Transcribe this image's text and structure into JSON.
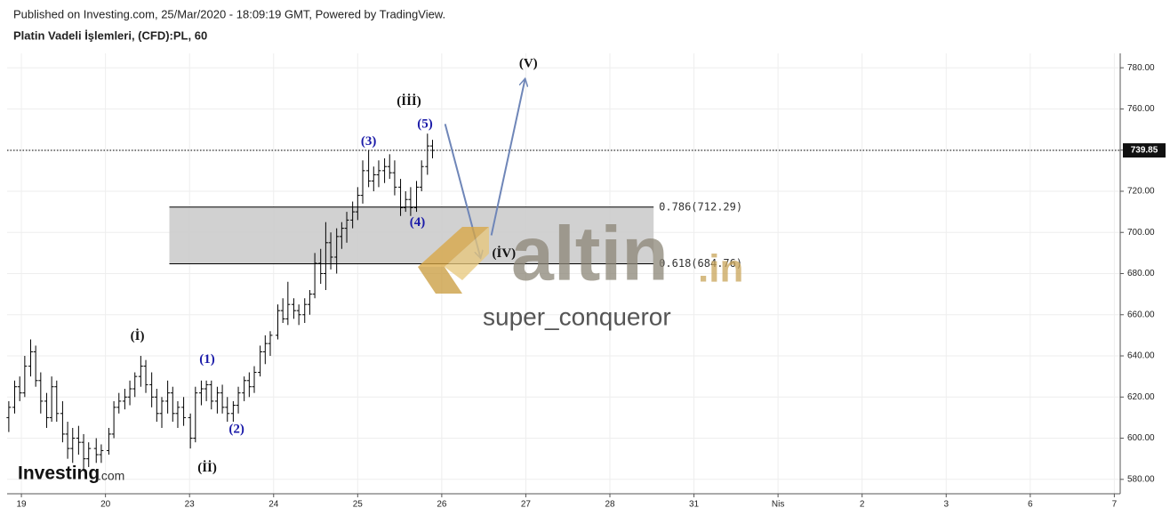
{
  "header": {
    "published": "Published on Investing.com, 25/Mar/2020 - 18:09:19 GMT, Powered by TradingView.",
    "instrument": "Platin Vadeli İşlemleri, (CFD):PL, 60"
  },
  "watermark": {
    "brand": "altin",
    "brand_suffix": ".in",
    "author": "super_conqueror",
    "logo": "Investing",
    "logo_suffix": ".com"
  },
  "chart_data": {
    "type": "ohlc",
    "color": "#000000",
    "x": [
      -0.15,
      -0.08,
      -0.02,
      0.04,
      0.11,
      0.17,
      0.23,
      0.3,
      0.36,
      0.42,
      0.49,
      0.55,
      0.61,
      0.68,
      0.74,
      0.8,
      0.89,
      0.95,
      1.04,
      1.1,
      1.16,
      1.23,
      1.29,
      1.35,
      1.42,
      1.48,
      1.55,
      1.61,
      1.67,
      1.74,
      1.8,
      1.86,
      1.93,
      2.01,
      2.07,
      2.14,
      2.2,
      2.26,
      2.33,
      2.39,
      2.45,
      2.52,
      2.58,
      2.65,
      2.71,
      2.77,
      2.84,
      2.9,
      2.96,
      3.05,
      3.11,
      3.17,
      3.24,
      3.3,
      3.37,
      3.43,
      3.49,
      3.56,
      3.62,
      3.68,
      3.75,
      3.81,
      3.87,
      3.94,
      4.0,
      4.06,
      4.13,
      4.19,
      4.25,
      4.32,
      4.38,
      4.44,
      4.51,
      4.57,
      4.63,
      4.7,
      4.76,
      4.83,
      4.89
    ],
    "open": [
      610,
      615,
      625,
      622,
      635,
      642,
      628,
      618,
      610,
      625,
      612,
      602,
      595,
      600,
      598,
      590,
      595,
      592,
      594,
      602,
      615,
      618,
      620,
      624,
      630,
      635,
      626,
      620,
      612,
      618,
      622,
      612,
      615,
      610,
      600,
      622,
      624,
      626,
      618,
      622,
      615,
      612,
      616,
      622,
      628,
      625,
      632,
      642,
      646,
      650,
      662,
      658,
      665,
      662,
      660,
      665,
      670,
      685,
      680,
      695,
      688,
      698,
      702,
      706,
      710,
      718,
      730,
      725,
      728,
      730,
      732,
      729,
      722,
      712,
      716,
      712,
      722,
      732,
      742
    ],
    "high": [
      618,
      628,
      630,
      640,
      648,
      645,
      632,
      622,
      630,
      628,
      618,
      608,
      605,
      606,
      602,
      598,
      600,
      597,
      605,
      618,
      622,
      624,
      628,
      632,
      640,
      638,
      632,
      624,
      620,
      628,
      625,
      618,
      620,
      612,
      625,
      628,
      628,
      628,
      625,
      626,
      620,
      618,
      625,
      630,
      632,
      635,
      645,
      650,
      652,
      665,
      668,
      676,
      668,
      665,
      668,
      672,
      690,
      692,
      705,
      700,
      702,
      705,
      710,
      715,
      722,
      735,
      740,
      732,
      735,
      736,
      738,
      735,
      726,
      720,
      722,
      725,
      735,
      748,
      745
    ],
    "low": [
      603,
      612,
      618,
      620,
      630,
      625,
      612,
      605,
      608,
      608,
      598,
      590,
      588,
      592,
      585,
      586,
      588,
      588,
      592,
      600,
      612,
      614,
      616,
      620,
      625,
      622,
      615,
      608,
      605,
      612,
      608,
      605,
      606,
      595,
      598,
      616,
      618,
      614,
      612,
      612,
      608,
      608,
      612,
      618,
      620,
      622,
      630,
      636,
      640,
      648,
      656,
      655,
      658,
      655,
      656,
      660,
      668,
      675,
      672,
      682,
      680,
      692,
      695,
      702,
      706,
      714,
      722,
      720,
      722,
      724,
      726,
      718,
      708,
      710,
      708,
      710,
      720,
      728,
      736
    ],
    "close": [
      615,
      625,
      622,
      635,
      642,
      628,
      618,
      610,
      625,
      612,
      602,
      595,
      600,
      598,
      590,
      595,
      592,
      594,
      602,
      615,
      618,
      620,
      624,
      630,
      635,
      626,
      620,
      612,
      618,
      622,
      612,
      615,
      610,
      600,
      622,
      624,
      626,
      618,
      622,
      615,
      612,
      616,
      622,
      628,
      625,
      632,
      642,
      646,
      650,
      662,
      658,
      665,
      662,
      660,
      665,
      670,
      685,
      680,
      695,
      688,
      698,
      702,
      706,
      710,
      718,
      730,
      725,
      728,
      730,
      732,
      729,
      722,
      712,
      716,
      712,
      722,
      732,
      742,
      739.85
    ],
    "xlim": [
      -0.17,
      13.07
    ],
    "xticks": [
      {
        "value": 0,
        "label": "19"
      },
      {
        "value": 1,
        "label": "20"
      },
      {
        "value": 2,
        "label": "23"
      },
      {
        "value": 3,
        "label": "24"
      },
      {
        "value": 4,
        "label": "25"
      },
      {
        "value": 5,
        "label": "26"
      },
      {
        "value": 6,
        "label": "27"
      },
      {
        "value": 7,
        "label": "28"
      },
      {
        "value": 8,
        "label": "31"
      },
      {
        "value": 9,
        "label": "Nis"
      },
      {
        "value": 10,
        "label": "2"
      },
      {
        "value": 11,
        "label": "3"
      },
      {
        "value": 12,
        "label": "6"
      },
      {
        "value": 13,
        "label": "7"
      }
    ],
    "ylim": [
      573,
      787
    ],
    "yticks": [
      {
        "value": 580,
        "label": "580.00"
      },
      {
        "value": 600,
        "label": "600.00"
      },
      {
        "value": 620,
        "label": "620.00"
      },
      {
        "value": 640,
        "label": "640.00"
      },
      {
        "value": 660,
        "label": "660.00"
      },
      {
        "value": 680,
        "label": "680.00"
      },
      {
        "value": 700,
        "label": "700.00"
      },
      {
        "value": 720,
        "label": "720.00"
      },
      {
        "value": 740,
        "label": "740.00"
      },
      {
        "value": 760,
        "label": "760.00"
      },
      {
        "value": 780,
        "label": "780.00"
      }
    ],
    "grid": true,
    "last_price": 739.85,
    "fib_zone": {
      "xrange": [
        1.76,
        7.52
      ],
      "color": "#cccccc",
      "levels": [
        {
          "ratio": 0.786,
          "value": 712.29,
          "label": "0.786(712.29)"
        },
        {
          "ratio": 0.618,
          "value": 684.76,
          "label": "0.618(684.76)"
        }
      ]
    },
    "projection": [
      {
        "x": [
          5.04,
          5.46
        ],
        "y": [
          752.7,
          687.8
        ]
      },
      {
        "x": [
          5.59,
          5.99
        ],
        "y": [
          698.6,
          774.4
        ]
      }
    ],
    "projection_color": "#6f86b8",
    "annotations": [
      {
        "text": "(İ)",
        "x": 1.38,
        "y": 649.3,
        "color": "#111111"
      },
      {
        "text": "(İİ)",
        "x": 2.21,
        "y": 585.2,
        "color": "#111111"
      },
      {
        "text": "(1)",
        "x": 2.21,
        "y": 638,
        "color": "#1a1aa8"
      },
      {
        "text": "(2)",
        "x": 2.56,
        "y": 604.2,
        "color": "#1a1aa8"
      },
      {
        "text": "(3)",
        "x": 4.13,
        "y": 744,
        "color": "#1a1aa8"
      },
      {
        "text": "(İİİ)",
        "x": 4.61,
        "y": 763.5,
        "color": "#111111"
      },
      {
        "text": "(5)",
        "x": 4.8,
        "y": 752.3,
        "color": "#1a1aa8"
      },
      {
        "text": "(4)",
        "x": 4.71,
        "y": 704.7,
        "color": "#1a1aa8"
      },
      {
        "text": "(İV)",
        "x": 5.74,
        "y": 689.5,
        "color": "#111111"
      },
      {
        "text": "(V)",
        "x": 6.03,
        "y": 781.7,
        "color": "#111111"
      }
    ]
  }
}
